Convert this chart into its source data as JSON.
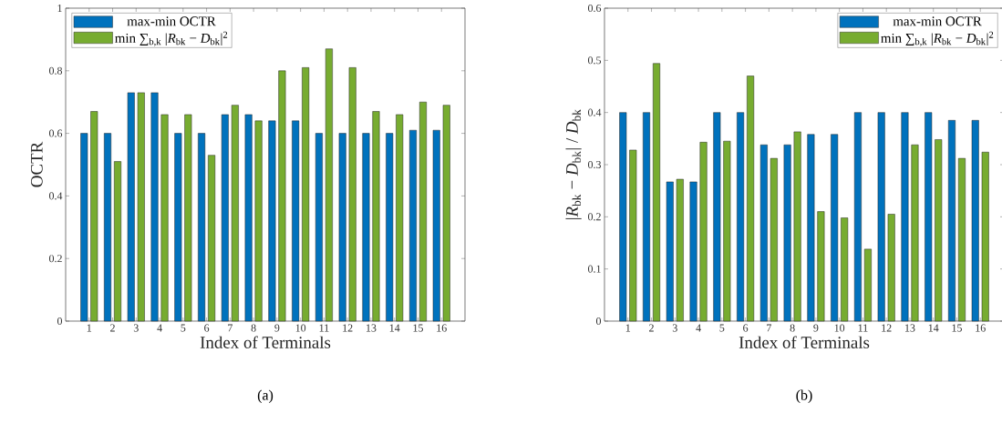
{
  "chart_data": [
    {
      "type": "bar",
      "xlabel": "Index of Terminals",
      "ylabel": "OCTR",
      "categories": [
        "1",
        "2",
        "3",
        "4",
        "5",
        "6",
        "7",
        "8",
        "9",
        "10",
        "11",
        "12",
        "13",
        "14",
        "15",
        "16"
      ],
      "series": [
        {
          "name": "max-min OCTR",
          "color": "#0072bd",
          "values": [
            0.6,
            0.6,
            0.73,
            0.73,
            0.6,
            0.6,
            0.66,
            0.66,
            0.64,
            0.64,
            0.6,
            0.6,
            0.6,
            0.6,
            0.61,
            0.61
          ]
        },
        {
          "name": "min ∑$_{b,k}$ |*R*$_{bk}$ − *D*$_{bk}$|$^{2}$",
          "color": "#77ac30",
          "values": [
            0.67,
            0.51,
            0.73,
            0.66,
            0.66,
            0.53,
            0.69,
            0.64,
            0.8,
            0.81,
            0.87,
            0.81,
            0.67,
            0.66,
            0.7,
            0.69
          ]
        }
      ],
      "ylim": [
        0,
        1
      ],
      "yticks": [
        0,
        0.2,
        0.4,
        0.6,
        0.8,
        1
      ],
      "legend": "top left",
      "annotations": [
        "(a)"
      ]
    },
    {
      "type": "bar",
      "xlabel": "Index of Terminals",
      "ylabel": "|*R*$_{bk}$ − *D*$_{bk}$| / *D*$_{bk}$",
      "categories": [
        "1",
        "2",
        "3",
        "4",
        "5",
        "6",
        "7",
        "8",
        "9",
        "10",
        "11",
        "12",
        "13",
        "14",
        "15",
        "16"
      ],
      "series": [
        {
          "name": "max-min OCTR",
          "color": "#0072bd",
          "values": [
            0.4,
            0.4,
            0.267,
            0.267,
            0.4,
            0.4,
            0.338,
            0.338,
            0.358,
            0.358,
            0.4,
            0.4,
            0.4,
            0.4,
            0.385,
            0.385
          ]
        },
        {
          "name": "min ∑$_{b,k}$ |*R*$_{bk}$ − *D*$_{bk}$|$^{2}$",
          "color": "#77ac30",
          "values": [
            0.328,
            0.494,
            0.272,
            0.343,
            0.345,
            0.47,
            0.312,
            0.363,
            0.21,
            0.198,
            0.138,
            0.205,
            0.338,
            0.348,
            0.312,
            0.324
          ]
        }
      ],
      "ylim": [
        0,
        0.6
      ],
      "yticks": [
        0,
        0.1,
        0.2,
        0.3,
        0.4,
        0.5,
        0.6
      ],
      "legend": "top right",
      "annotations": [
        "(b)"
      ]
    }
  ]
}
